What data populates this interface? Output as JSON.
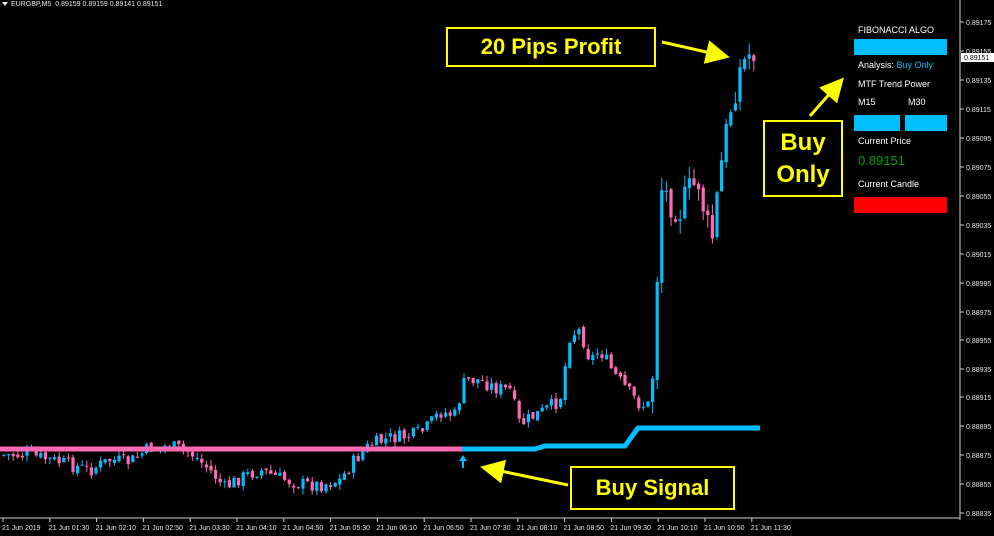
{
  "header": {
    "symbol": "EURGBP,M5",
    "ohlc": "0.89159 0.89159 0.89141 0.89151"
  },
  "price_axis": {
    "labels": [
      "0.89175",
      "0.89155",
      "0.89151",
      "0.89135",
      "0.89115",
      "0.89095",
      "0.89075",
      "0.89055",
      "0.89035",
      "0.89015",
      "0.88995",
      "0.88975",
      "0.88955",
      "0.88935",
      "0.88915",
      "0.88895",
      "0.88875",
      "0.88855",
      "0.88835"
    ],
    "current_price_label": "0.89151"
  },
  "time_axis": {
    "labels": [
      "21 Jun 2019",
      "21 Jun 01:30",
      "21 Jun 02:10",
      "21 Jun 02:50",
      "21 Jun 03:30",
      "21 Jun 04:10",
      "21 Jun 04:50",
      "21 Jun 05:30",
      "21 Jun 06:10",
      "21 Jun 06:50",
      "21 Jun 07:30",
      "21 Jun 08:10",
      "21 Jun 08:50",
      "21 Jun 09:30",
      "21 Jun 10:10",
      "21 Jun 10:50",
      "21 Jun 11:30"
    ]
  },
  "indicator_panel": {
    "title": "FIBONACCI ALGO",
    "analysis_label": "Analysis:",
    "analysis_value": "Buy Only",
    "trend_title": "MTF Trend Power",
    "tf1": "M15",
    "tf2": "M30",
    "current_price_label": "Current Price",
    "current_price_value": "0.89151",
    "current_candle_label": "Current Candle"
  },
  "callouts": {
    "profit": "20 Pips Profit",
    "buy_only_line1": "Buy",
    "buy_only_line2": "Only",
    "buy_signal": "Buy Signal"
  },
  "colors": {
    "bull": "#00bfff",
    "bear": "#ff69b4",
    "callout": "#ffff00",
    "panel_blue": "#00bfff",
    "panel_red": "#ff0000",
    "price_green": "#00a000"
  }
}
